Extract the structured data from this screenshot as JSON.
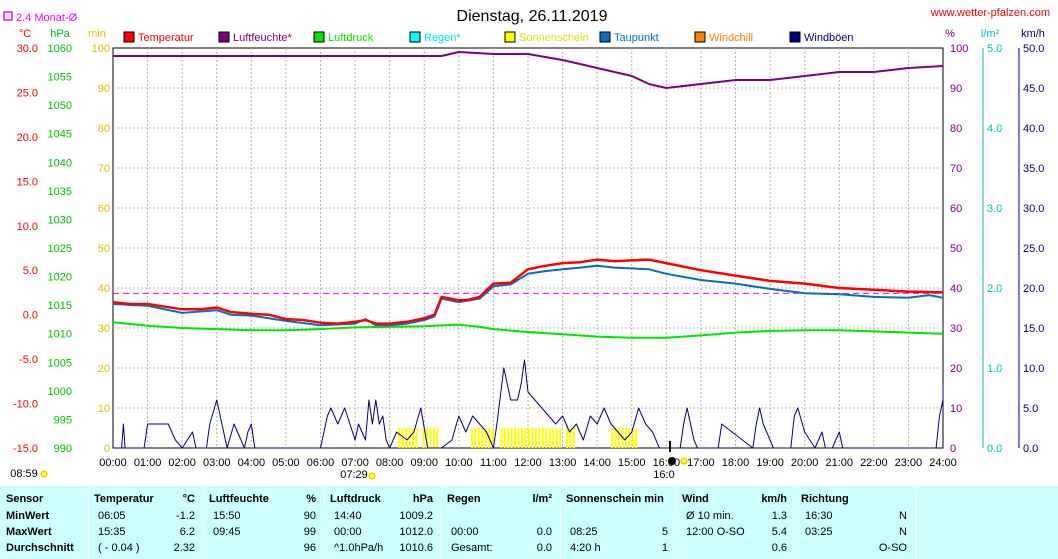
{
  "chart_data": {
    "type": "line",
    "title": "Dienstag, 26.11.2019",
    "source": "www.wetter-pfalzen.com",
    "avg_label": "2.4 Monat-Ø",
    "legend": [
      {
        "name": "Temperatur",
        "color": "#ff0000"
      },
      {
        "name": "Luftfeuchte*",
        "color": "#800080"
      },
      {
        "name": "Luftdruck",
        "color": "#00e600"
      },
      {
        "name": "Regen*",
        "color": "#00ffff"
      },
      {
        "name": "Sonnenschein",
        "color": "#ffff00"
      },
      {
        "name": "Taupunkt",
        "color": "#0070c0"
      },
      {
        "name": "Windchill",
        "color": "#ff8000"
      },
      {
        "name": "Windböen",
        "color": "#000080"
      }
    ],
    "axes": {
      "temp": {
        "unit": "°C",
        "ticks": [
          "30.0",
          "25.0",
          "20.0",
          "15.0",
          "10.0",
          "5.0",
          "0.0",
          "-5.0",
          "-10.0",
          "-15.0"
        ],
        "ylim": [
          -15,
          30
        ]
      },
      "pressure": {
        "unit": "hPa",
        "ticks": [
          "1060",
          "1055",
          "1050",
          "1045",
          "1040",
          "1035",
          "1030",
          "1025",
          "1020",
          "1015",
          "1010",
          "1005",
          "1000",
          "995",
          "990"
        ],
        "ylim": [
          990,
          1060
        ]
      },
      "minutes": {
        "unit": "min",
        "ticks": [
          "100",
          "90",
          "80",
          "70",
          "60",
          "50",
          "40",
          "30",
          "20",
          "10",
          "0"
        ],
        "ylim": [
          0,
          100
        ]
      },
      "humidity": {
        "unit": "%",
        "ticks": [
          "100",
          "90",
          "80",
          "70",
          "60",
          "50",
          "40",
          "30",
          "20",
          "10",
          "0"
        ],
        "ylim": [
          0,
          100
        ]
      },
      "rain": {
        "unit": "l/m²",
        "ticks": [
          "5.0",
          "4.0",
          "3.0",
          "2.0",
          "1.0",
          "0.0"
        ],
        "ylim": [
          0,
          5
        ]
      },
      "wind": {
        "unit": "km/h",
        "ticks": [
          "50.0",
          "45.0",
          "40.0",
          "35.0",
          "30.0",
          "25.0",
          "20.0",
          "15.0",
          "10.0",
          "5.0",
          "0.0"
        ],
        "ylim": [
          0,
          50
        ]
      }
    },
    "x_ticks": [
      "00:00",
      "01:00",
      "02:00",
      "03:00",
      "04:00",
      "05:00",
      "06:00",
      "07:00",
      "08:00",
      "09:00",
      "10:00",
      "11:00",
      "12:00",
      "13:00",
      "14:00",
      "15:00",
      "16:00",
      "17:00",
      "18:00",
      "19:00",
      "20:00",
      "21:00",
      "22:00",
      "23:00",
      "24:00"
    ],
    "sun_events": {
      "sunrise": "07:29",
      "sunset": "16:0",
      "left_time": "08:59"
    },
    "monthly_avg_temp": 2.4,
    "series": [
      {
        "name": "Temperatur",
        "axis": "temp",
        "points": [
          [
            0,
            1.4
          ],
          [
            0.5,
            1.2
          ],
          [
            1,
            1.2
          ],
          [
            1.5,
            0.9
          ],
          [
            2,
            0.6
          ],
          [
            2.5,
            0.6
          ],
          [
            3,
            0.8
          ],
          [
            3.4,
            0.3
          ],
          [
            4,
            0.1
          ],
          [
            4.5,
            0.0
          ],
          [
            5,
            -0.5
          ],
          [
            5.5,
            -0.6
          ],
          [
            6,
            -0.9
          ],
          [
            6.5,
            -1.0
          ],
          [
            7,
            -0.8
          ],
          [
            7.3,
            -0.6
          ],
          [
            7.6,
            -1.0
          ],
          [
            8,
            -1.0
          ],
          [
            8.5,
            -0.8
          ],
          [
            9,
            -0.4
          ],
          [
            9.3,
            0.0
          ],
          [
            9.5,
            2.0
          ],
          [
            10,
            1.6
          ],
          [
            10.3,
            1.7
          ],
          [
            10.6,
            2.0
          ],
          [
            11,
            3.5
          ],
          [
            11.5,
            3.6
          ],
          [
            12,
            5.1
          ],
          [
            12.5,
            5.5
          ],
          [
            13,
            5.8
          ],
          [
            13.5,
            5.9
          ],
          [
            14,
            6.2
          ],
          [
            14.5,
            6.0
          ],
          [
            15,
            6.1
          ],
          [
            15.5,
            6.2
          ],
          [
            16,
            5.8
          ],
          [
            17,
            5.0
          ],
          [
            18,
            4.4
          ],
          [
            19,
            3.8
          ],
          [
            20,
            3.5
          ],
          [
            21,
            3.0
          ],
          [
            22,
            2.8
          ],
          [
            23,
            2.6
          ],
          [
            24,
            2.5
          ]
        ]
      },
      {
        "name": "Taupunkt",
        "axis": "temp",
        "points": [
          [
            0,
            1.2
          ],
          [
            1,
            1.0
          ],
          [
            2,
            0.2
          ],
          [
            3,
            0.5
          ],
          [
            3.4,
            0.0
          ],
          [
            4,
            -0.1
          ],
          [
            5,
            -0.7
          ],
          [
            6,
            -1.2
          ],
          [
            7,
            -1.0
          ],
          [
            7.3,
            -0.5
          ],
          [
            7.6,
            -1.2
          ],
          [
            8,
            -1.2
          ],
          [
            8.5,
            -1.0
          ],
          [
            9,
            -0.6
          ],
          [
            9.3,
            -0.2
          ],
          [
            9.5,
            1.8
          ],
          [
            10,
            1.4
          ],
          [
            10.6,
            1.8
          ],
          [
            11,
            3.2
          ],
          [
            11.5,
            3.4
          ],
          [
            12,
            4.6
          ],
          [
            12.5,
            4.9
          ],
          [
            13,
            5.1
          ],
          [
            13.5,
            5.3
          ],
          [
            14,
            5.5
          ],
          [
            14.5,
            5.3
          ],
          [
            15,
            5.2
          ],
          [
            15.5,
            5.1
          ],
          [
            16,
            4.6
          ],
          [
            17,
            3.9
          ],
          [
            18,
            3.5
          ],
          [
            19,
            2.9
          ],
          [
            20,
            2.4
          ],
          [
            21,
            2.3
          ],
          [
            22,
            2.0
          ],
          [
            23,
            1.9
          ],
          [
            23.6,
            2.2
          ],
          [
            24,
            1.9
          ]
        ]
      },
      {
        "name": "Luftfeuchte*",
        "axis": "humidity",
        "points": [
          [
            0,
            98
          ],
          [
            8,
            98
          ],
          [
            9.5,
            98
          ],
          [
            10,
            99
          ],
          [
            11,
            98.5
          ],
          [
            12,
            98.5
          ],
          [
            13,
            97
          ],
          [
            14,
            95
          ],
          [
            15,
            93
          ],
          [
            15.5,
            91
          ],
          [
            16,
            90
          ],
          [
            17,
            91
          ],
          [
            18,
            92
          ],
          [
            19,
            92
          ],
          [
            20,
            93
          ],
          [
            21,
            94
          ],
          [
            22,
            94
          ],
          [
            23,
            95
          ],
          [
            24,
            95.5
          ]
        ]
      },
      {
        "name": "Luftdruck",
        "axis": "pressure",
        "points": [
          [
            0,
            1012.0
          ],
          [
            1,
            1011.4
          ],
          [
            2,
            1011.0
          ],
          [
            3,
            1010.8
          ],
          [
            4,
            1010.6
          ],
          [
            5,
            1010.6
          ],
          [
            6,
            1010.8
          ],
          [
            7,
            1011.1
          ],
          [
            8,
            1011.2
          ],
          [
            9,
            1011.3
          ],
          [
            10,
            1011.6
          ],
          [
            10.6,
            1011.2
          ],
          [
            11,
            1010.8
          ],
          [
            12,
            1010.3
          ],
          [
            13,
            1009.9
          ],
          [
            14,
            1009.5
          ],
          [
            15,
            1009.3
          ],
          [
            16,
            1009.3
          ],
          [
            17,
            1009.7
          ],
          [
            18,
            1010.2
          ],
          [
            19,
            1010.5
          ],
          [
            20,
            1010.6
          ],
          [
            21,
            1010.6
          ],
          [
            22,
            1010.4
          ],
          [
            23,
            1010.2
          ],
          [
            24,
            1010.0
          ]
        ]
      },
      {
        "name": "Windböen",
        "axis": "wind",
        "points": [
          [
            0,
            0
          ],
          [
            0.25,
            0
          ],
          [
            0.3,
            3
          ],
          [
            0.35,
            0
          ],
          [
            0.9,
            0
          ],
          [
            1,
            3
          ],
          [
            1.6,
            3
          ],
          [
            1.8,
            1
          ],
          [
            2,
            0
          ],
          [
            2.3,
            2
          ],
          [
            2.4,
            0
          ],
          [
            2.7,
            0
          ],
          [
            2.8,
            3
          ],
          [
            3,
            6
          ],
          [
            3.1,
            4
          ],
          [
            3.3,
            0
          ],
          [
            3.5,
            3
          ],
          [
            3.7,
            1
          ],
          [
            3.8,
            0
          ],
          [
            3.9,
            2
          ],
          [
            4,
            3
          ],
          [
            4.1,
            0
          ],
          [
            6,
            0
          ],
          [
            6.2,
            4
          ],
          [
            6.3,
            5
          ],
          [
            6.5,
            3
          ],
          [
            6.7,
            5
          ],
          [
            7,
            1
          ],
          [
            7.1,
            3
          ],
          [
            7.3,
            1
          ],
          [
            7.4,
            6
          ],
          [
            7.5,
            3
          ],
          [
            7.6,
            6
          ],
          [
            7.7,
            3
          ],
          [
            7.8,
            4
          ],
          [
            7.9,
            1
          ],
          [
            8,
            0
          ],
          [
            8.2,
            2
          ],
          [
            8.5,
            1
          ],
          [
            8.7,
            2
          ],
          [
            8.9,
            5
          ],
          [
            9.1,
            0
          ],
          [
            9.5,
            0
          ],
          [
            9.8,
            1
          ],
          [
            10,
            4
          ],
          [
            10.2,
            2
          ],
          [
            10.4,
            4
          ],
          [
            10.6,
            3
          ],
          [
            10.8,
            2
          ],
          [
            11,
            0
          ],
          [
            11.1,
            3
          ],
          [
            11.3,
            10
          ],
          [
            11.5,
            6
          ],
          [
            11.7,
            6
          ],
          [
            11.8,
            8
          ],
          [
            11.9,
            11
          ],
          [
            12,
            7
          ],
          [
            12.2,
            6
          ],
          [
            12.4,
            5
          ],
          [
            12.6,
            4
          ],
          [
            12.8,
            3
          ],
          [
            13,
            4
          ],
          [
            13.2,
            2
          ],
          [
            13.4,
            3
          ],
          [
            13.6,
            1
          ],
          [
            13.8,
            4
          ],
          [
            14,
            3
          ],
          [
            14.2,
            5
          ],
          [
            14.4,
            3
          ],
          [
            14.6,
            2
          ],
          [
            14.8,
            1
          ],
          [
            15,
            2
          ],
          [
            15.2,
            5
          ],
          [
            15.4,
            3
          ],
          [
            15.6,
            2
          ],
          [
            15.8,
            0
          ],
          [
            16.4,
            0
          ],
          [
            16.5,
            3
          ],
          [
            16.6,
            5
          ],
          [
            16.8,
            1
          ],
          [
            16.9,
            0
          ],
          [
            17.5,
            0
          ],
          [
            17.6,
            3
          ],
          [
            18.5,
            0
          ],
          [
            18.6,
            3
          ],
          [
            18.7,
            5
          ],
          [
            18.8,
            3
          ],
          [
            19,
            1
          ],
          [
            19.1,
            0
          ],
          [
            19.6,
            0
          ],
          [
            19.7,
            4
          ],
          [
            19.8,
            5
          ],
          [
            20,
            2
          ],
          [
            20.3,
            0
          ],
          [
            20.5,
            2
          ],
          [
            20.6,
            0
          ],
          [
            20.8,
            0
          ],
          [
            21,
            2
          ],
          [
            21.1,
            0
          ],
          [
            23.8,
            0
          ],
          [
            23.9,
            4
          ],
          [
            24,
            6
          ],
          [
            24,
            8
          ]
        ]
      }
    ],
    "sunshine_blocks": [
      [
        8.25,
        8.75
      ],
      [
        8.95,
        9.35
      ],
      [
        10.35,
        10.95
      ],
      [
        11.2,
        12.95
      ],
      [
        13.1,
        13.35
      ],
      [
        14.4,
        15.1
      ]
    ]
  },
  "table": {
    "row_labels": [
      "Sensor",
      "MinWert",
      "MaxWert",
      "Durchschnitt"
    ],
    "columns": [
      {
        "title": "Temperatur",
        "unit": "°C",
        "rows": [
          [
            "06:05",
            "-1.2"
          ],
          [
            "15:35",
            "6.2"
          ],
          [
            "( - 0.04 )",
            "2.32"
          ]
        ]
      },
      {
        "title": "Luftfeuchte",
        "unit": "%",
        "rows": [
          [
            "15:50",
            "90"
          ],
          [
            "09:45",
            "99"
          ],
          [
            "",
            "96"
          ]
        ]
      },
      {
        "title": "Luftdruck",
        "unit": "hPa",
        "rows": [
          [
            "14:40",
            "1009.2"
          ],
          [
            "00:00",
            "1012.0"
          ],
          [
            "^1.0hPa/h",
            "1010.6"
          ]
        ]
      },
      {
        "title": "Regen",
        "unit": "l/m²",
        "rows": [
          [
            "",
            ""
          ],
          [
            "00:00",
            "0.0"
          ],
          [
            "Gesamt:",
            "0.0"
          ]
        ]
      },
      {
        "title": "Sonnenschein min",
        "unit": "",
        "rows": [
          [
            "",
            ""
          ],
          [
            "08:25",
            "5"
          ],
          [
            "4:20 h",
            "1"
          ]
        ]
      },
      {
        "title": "Wind",
        "unit": "km/h",
        "rows": [
          [
            "Ø 10 min.",
            "1.3"
          ],
          [
            "12:00   O-SO",
            "5.4"
          ],
          [
            "",
            "0.6"
          ]
        ]
      },
      {
        "title": "Richtung",
        "unit": "",
        "rows": [
          [
            "16:30",
            "N"
          ],
          [
            "03:25",
            "N"
          ],
          [
            "",
            "O-SO"
          ]
        ]
      }
    ]
  }
}
